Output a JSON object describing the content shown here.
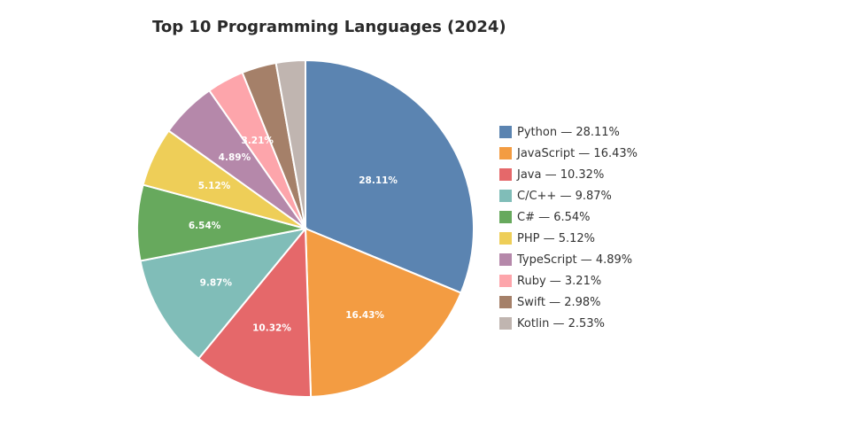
{
  "chart_data": {
    "type": "pie",
    "title": "Top 10 Programming Languages (2024)",
    "categories": [
      "Python",
      "JavaScript",
      "Java",
      "C/C++",
      "C#",
      "PHP",
      "TypeScript",
      "Ruby",
      "Swift",
      "Kotlin"
    ],
    "values": [
      28.11,
      16.43,
      10.32,
      9.87,
      6.54,
      5.12,
      4.89,
      3.21,
      2.98,
      2.53
    ],
    "slice_labels": [
      "28.11%",
      "16.43%",
      "10.32%",
      "9.87%",
      "6.54%",
      "5.12%",
      "4.89%",
      "3.21%",
      "",
      ""
    ],
    "legend_labels": [
      "Python — 28.11%",
      "JavaScript — 16.43%",
      "Java — 10.32%",
      "C/C++ — 9.87%",
      "C# — 6.54%",
      "PHP — 5.12%",
      "TypeScript — 4.89%",
      "Ruby — 3.21%",
      "Swift — 2.98%",
      "Kotlin — 2.53%"
    ],
    "colors": [
      "#5b84b1",
      "#f39c42",
      "#e5686a",
      "#80bdb8",
      "#67a95d",
      "#eece58",
      "#b588aa",
      "#fda5ab",
      "#a58069",
      "#c0b5b0"
    ],
    "legend_position": "right",
    "start_angle": "12 o'clock",
    "direction": "clockwise"
  }
}
